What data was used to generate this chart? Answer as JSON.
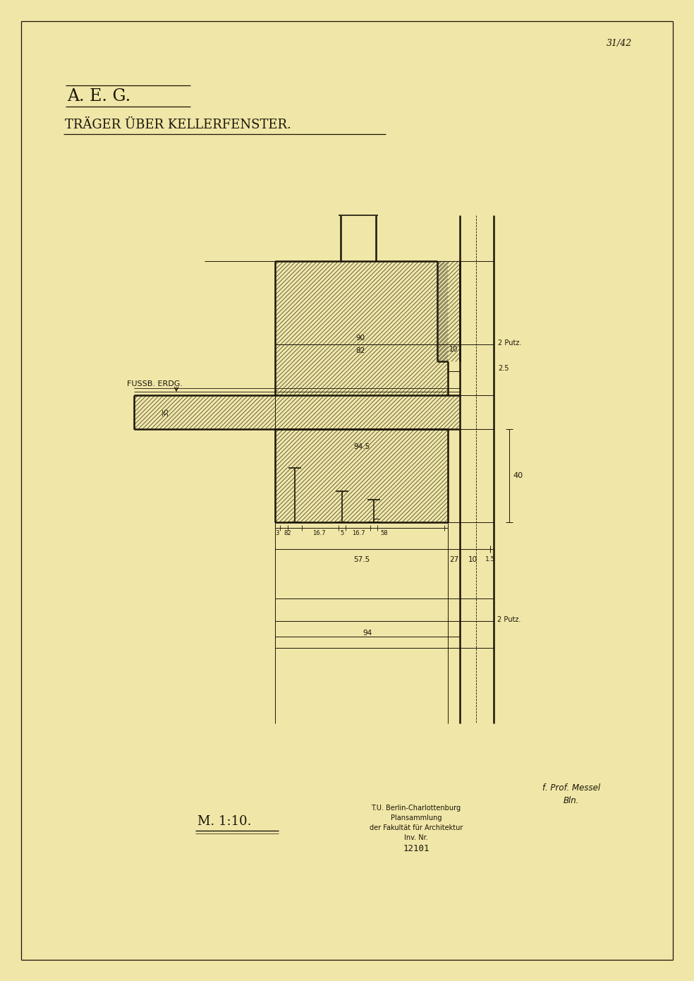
{
  "bg_color": "#f0e6a8",
  "line_color": "#1a1508",
  "title1": "A. E. G.",
  "title2": "TRÄGER ÜBER KELLERFENSTER.",
  "scale_text": "M. 1:10.",
  "stamp_line1": "T.U. Berlin-Charlottenburg",
  "stamp_line2": "Plansammlung",
  "stamp_line3": "der Fakultät für Architektur",
  "stamp_line4": "Inv. Nr.",
  "stamp_line5": "12101",
  "page_num": "31/42",
  "sig_line1": "f. Prof. Messel",
  "sig_line2": "Bln.",
  "label_fussb": "FUSSB. ERDG.",
  "label_90": "90",
  "label_82": "82",
  "label_10": "10",
  "label_2putz1": "2 Putz.",
  "label_25": "2.5",
  "label_35": "35",
  "label_945": "94.5",
  "label_575": "57.5",
  "label_27": "27",
  "label_10b": "10",
  "label_15": "1.5",
  "label_94": "94",
  "label_2putz2": "2 Putz.",
  "label_40": "40",
  "fig_width": 9.84,
  "fig_height": 13.9
}
